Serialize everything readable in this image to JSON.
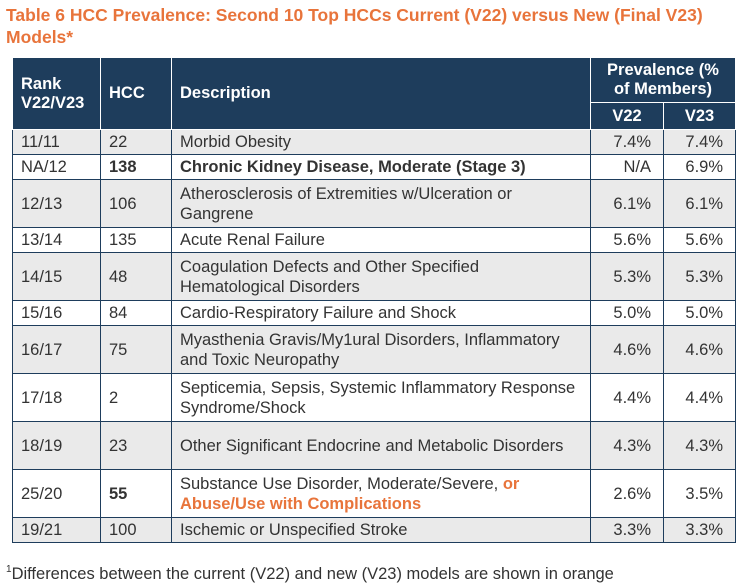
{
  "title": "Table 6 HCC Prevalence: Second 10 Top HCCs Current (V22) versus New (Final V23) Models*",
  "headers": {
    "rank": "Rank V22/V23",
    "hcc": "HCC",
    "description": "Description",
    "prevalence": "Prevalence (% of Members)",
    "v22": "V22",
    "v23": "V23"
  },
  "colors": {
    "header_bg": "#1e3d5c",
    "accent_orange": "#e8743b",
    "stripe_gray": "#eaeaea"
  },
  "rows": [
    {
      "rank": "11/11",
      "hcc": "22",
      "description": "Morbid Obesity",
      "v22": "7.4%",
      "v23": "7.4%"
    },
    {
      "rank": "NA/12",
      "hcc": "138",
      "description": "Chronic Kidney Disease, Moderate (Stage 3)",
      "v22": "N/A",
      "v23": "6.9%"
    },
    {
      "rank": "12/13",
      "hcc": "106",
      "description": "Atherosclerosis of Extremities w/Ulceration or Gangrene",
      "v22": "6.1%",
      "v23": "6.1%"
    },
    {
      "rank": "13/14",
      "hcc": "135",
      "description": "Acute Renal Failure",
      "v22": "5.6%",
      "v23": "5.6%"
    },
    {
      "rank": "14/15",
      "hcc": "48",
      "description": "Coagulation Defects and Other Specified Hematological Disorders",
      "v22": "5.3%",
      "v23": "5.3%"
    },
    {
      "rank": "15/16",
      "hcc": "84",
      "description": "Cardio-Respiratory Failure and Shock",
      "v22": "5.0%",
      "v23": "5.0%"
    },
    {
      "rank": "16/17",
      "hcc": "75",
      "description": "Myasthenia Gravis/My1ural Disorders, Inflammatory and Toxic Neuropathy",
      "v22": "4.6%",
      "v23": "4.6%"
    },
    {
      "rank": "17/18",
      "hcc": "2",
      "description": "Septicemia, Sepsis, Systemic Inflammatory Response Syndrome/Shock",
      "v22": "4.4%",
      "v23": "4.4%"
    },
    {
      "rank": "18/19",
      "hcc": "23",
      "description": "Other Significant Endocrine and Metabolic Disorders",
      "v22": "4.3%",
      "v23": "4.3%"
    },
    {
      "rank": "25/20",
      "hcc": "55",
      "description_plain": "Substance Use Disorder, Moderate/Severe, ",
      "description_orange": "or Abuse/Use with Complications",
      "v22": "2.6%",
      "v23": "3.5%"
    },
    {
      "rank": "19/21",
      "hcc": "100",
      "description": "Ischemic or Unspecified Stroke",
      "v22": "3.3%",
      "v23": "3.3%"
    }
  ],
  "footnote": {
    "marker": "1",
    "text": "Differences between the current (V22) and new (V23) models are shown in orange"
  }
}
